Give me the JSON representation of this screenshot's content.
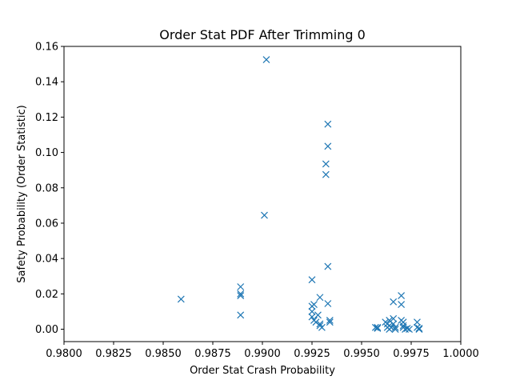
{
  "chart_data": {
    "type": "scatter",
    "title": "Order Stat PDF After Trimming 0",
    "xlabel": "Order Stat Crash Probability",
    "ylabel": "Safety Probability (Order Statistic)",
    "xlim": [
      0.98,
      1.0
    ],
    "ylim": [
      -0.007,
      0.16
    ],
    "xticks": [
      "0.9800",
      "0.9825",
      "0.9850",
      "0.9875",
      "0.9900",
      "0.9925",
      "0.9950",
      "0.9975",
      "1.0000"
    ],
    "xtick_values": [
      0.98,
      0.9825,
      0.985,
      0.9875,
      0.99,
      0.9925,
      0.995,
      0.9975,
      1.0
    ],
    "yticks": [
      "0.00",
      "0.02",
      "0.04",
      "0.06",
      "0.08",
      "0.10",
      "0.12",
      "0.14",
      "0.16"
    ],
    "ytick_values": [
      0.0,
      0.02,
      0.04,
      0.06,
      0.08,
      0.1,
      0.12,
      0.14,
      0.16
    ],
    "grid": false,
    "marker": "x",
    "color": "#1f77b4",
    "points": [
      [
        0.9859,
        0.017
      ],
      [
        0.9889,
        0.024
      ],
      [
        0.9889,
        0.02
      ],
      [
        0.9889,
        0.019
      ],
      [
        0.9889,
        0.008
      ],
      [
        0.9901,
        0.0645
      ],
      [
        0.9902,
        0.1525
      ],
      [
        0.9925,
        0.028
      ],
      [
        0.9925,
        0.013
      ],
      [
        0.9926,
        0.014
      ],
      [
        0.9925,
        0.01
      ],
      [
        0.9925,
        0.007
      ],
      [
        0.9926,
        0.005
      ],
      [
        0.9927,
        0.004
      ],
      [
        0.9928,
        0.008
      ],
      [
        0.9929,
        0.018
      ],
      [
        0.9929,
        0.003
      ],
      [
        0.9929,
        0.002
      ],
      [
        0.993,
        0.001
      ],
      [
        0.9932,
        0.0875
      ],
      [
        0.9932,
        0.0935
      ],
      [
        0.9933,
        0.116
      ],
      [
        0.9933,
        0.1035
      ],
      [
        0.9933,
        0.0355
      ],
      [
        0.9933,
        0.0145
      ],
      [
        0.9934,
        0.005
      ],
      [
        0.9934,
        0.004
      ],
      [
        0.9957,
        0.001
      ],
      [
        0.9958,
        0.0005
      ],
      [
        0.9958,
        0.001
      ],
      [
        0.9962,
        0.004
      ],
      [
        0.9963,
        0.003
      ],
      [
        0.9963,
        0.001
      ],
      [
        0.9964,
        0.005
      ],
      [
        0.9964,
        0.002
      ],
      [
        0.9964,
        0.0
      ],
      [
        0.9965,
        0.001
      ],
      [
        0.9966,
        0.0155
      ],
      [
        0.9966,
        0.006
      ],
      [
        0.9966,
        0.003
      ],
      [
        0.9967,
        0.001
      ],
      [
        0.9967,
        0.0
      ],
      [
        0.997,
        0.019
      ],
      [
        0.997,
        0.014
      ],
      [
        0.997,
        0.005
      ],
      [
        0.9971,
        0.004
      ],
      [
        0.9971,
        0.002
      ],
      [
        0.9971,
        0.001
      ],
      [
        0.9972,
        0.0
      ],
      [
        0.9973,
        0.0005
      ],
      [
        0.9974,
        0.0
      ],
      [
        0.9978,
        0.004
      ],
      [
        0.9978,
        0.001
      ],
      [
        0.9979,
        0.0
      ],
      [
        0.9979,
        0.0005
      ]
    ]
  }
}
